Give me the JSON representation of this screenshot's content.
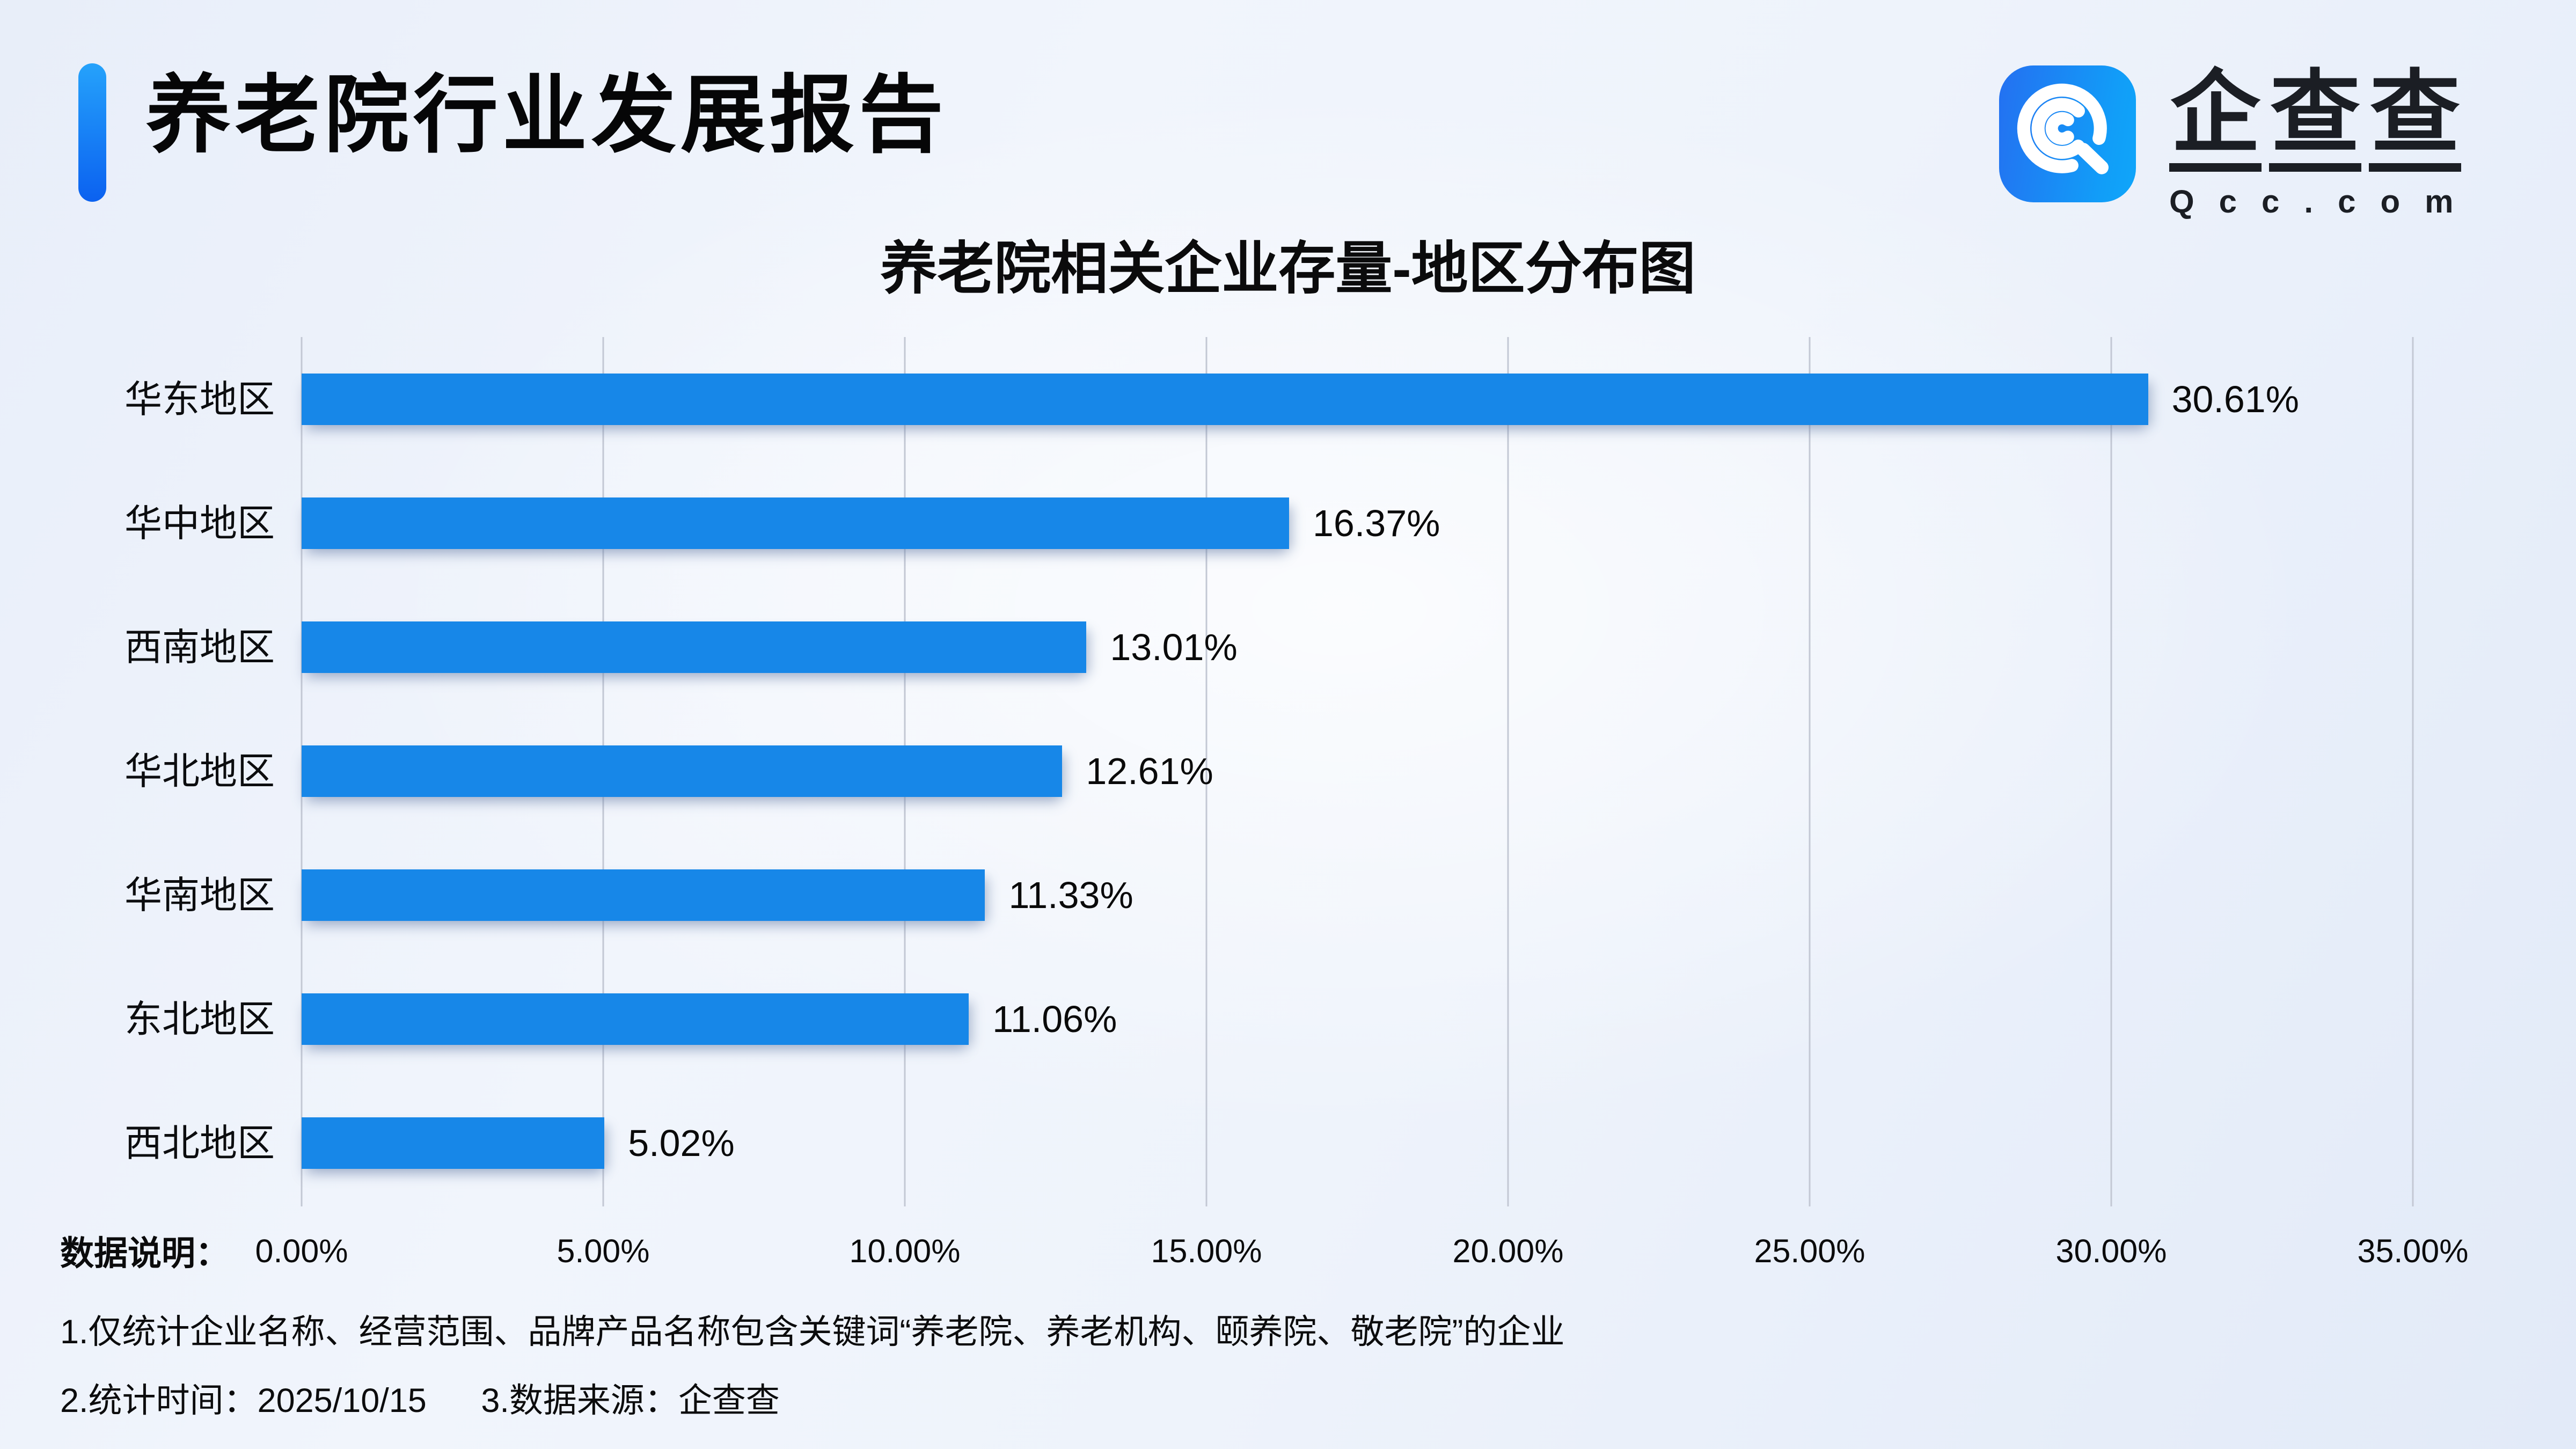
{
  "header": {
    "title": "养老院行业发展报告"
  },
  "logo": {
    "name": "企查查",
    "name_chars": [
      "企",
      "查",
      "查"
    ],
    "domain": "Qcc.com",
    "icon": "qcc-spiral-q-icon",
    "icon_gradient": [
      "#2470f1",
      "#0fa6fa"
    ]
  },
  "colors": {
    "bar_blue": "#1787e8",
    "accent_blue_top": "#25a2fb",
    "accent_blue_bottom": "#0b61f0",
    "grid_line": "#c3c8d4",
    "background_tint": "#e8eef9",
    "text_dark": "#0a0a0a"
  },
  "chart_data": {
    "type": "bar",
    "orientation": "horizontal",
    "title": "养老院相关企业存量-地区分布图",
    "categories": [
      "华东地区",
      "华中地区",
      "西南地区",
      "华北地区",
      "华南地区",
      "东北地区",
      "西北地区"
    ],
    "values": [
      30.61,
      16.37,
      13.01,
      12.61,
      11.33,
      11.06,
      5.02
    ],
    "value_labels": [
      "30.61%",
      "16.37%",
      "13.01%",
      "12.61%",
      "11.33%",
      "11.06%",
      "5.02%"
    ],
    "xlabel": "",
    "ylabel": "",
    "xlim": [
      0,
      35
    ],
    "x_tick_labels": [
      "0.00%",
      "5.00%",
      "10.00%",
      "15.00%",
      "20.00%",
      "25.00%",
      "30.00%",
      "35.00%"
    ],
    "grid": true,
    "legend": false,
    "bar_color": "#1787e8"
  },
  "footer": {
    "label": "数据说明：",
    "note1": "1.仅统计企业名称、经营范围、品牌产品名称包含关键词“养老院、养老机构、颐养院、敬老院”的企业",
    "note2_part1": "2.统计时间：2025/10/15",
    "note2_part2": "3.数据来源：企查查"
  }
}
